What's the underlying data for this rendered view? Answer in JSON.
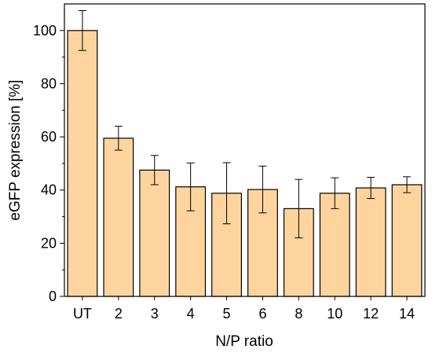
{
  "chart_data": {
    "type": "bar",
    "categories": [
      "UT",
      "2",
      "3",
      "4",
      "5",
      "6",
      "8",
      "10",
      "12",
      "14"
    ],
    "values": [
      100,
      59.5,
      47.5,
      41.2,
      38.8,
      40.2,
      33,
      38.8,
      40.8,
      42
    ],
    "errors": [
      7.5,
      4.5,
      5.5,
      9,
      11.5,
      8.8,
      11,
      5.8,
      4,
      3
    ],
    "xlabel": "N/P ratio",
    "ylabel": "eGFP expression [%]",
    "ylim": [
      0,
      110
    ],
    "yticks": [
      0,
      20,
      40,
      60,
      80,
      100
    ],
    "bar_color": "#fdd49e",
    "bar_edge_color": "#000000",
    "grid": false,
    "legend": false
  }
}
